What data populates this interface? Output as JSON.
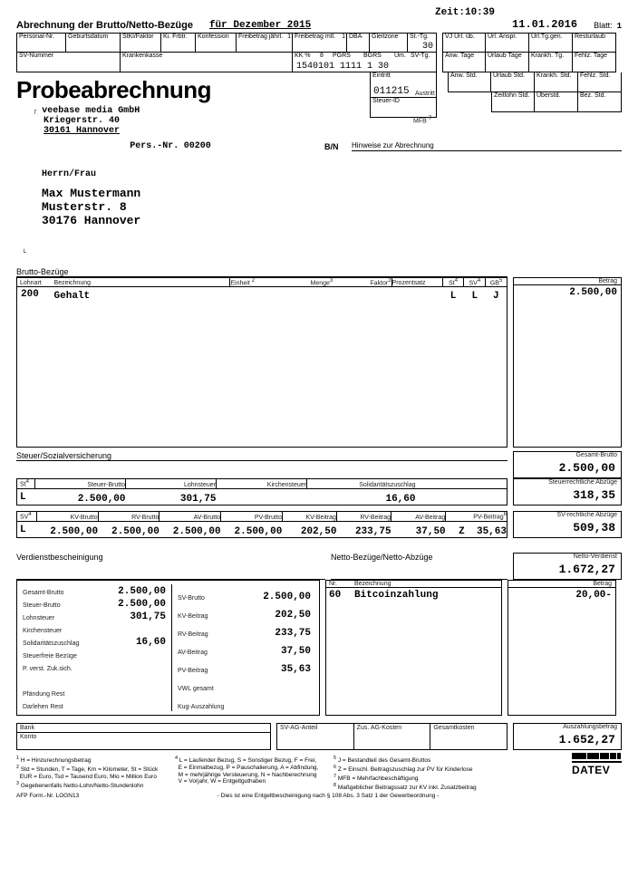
{
  "header": {
    "zeit_label": "Zeit:",
    "zeit": "10:39",
    "title_line": "Abrechnung der Brutto/Netto-Bezüge",
    "period": "für Dezember 2015",
    "date": "11.01.2016",
    "blatt_label": "Blatt:",
    "blatt": "1"
  },
  "row1": {
    "personal_nr": "Personal-Nr.",
    "geburtsdatum": "Geburtsdatum",
    "stkl_faktor": "StKl/Faktor",
    "ki_frbtr": "Ki. Frbtr.",
    "konfession": "Konfession",
    "freibetrag_j": "Freibetrag jährl.",
    "freibetrag_m": "Freibetrag mtl.",
    "dba": "DBA",
    "gleitzone": "Gleitzone",
    "st_tg": "St.-Tg.",
    "st_tg_val": "30",
    "vj_url": "VJ Url. üb.",
    "url_anspr": "Url. Anspr.",
    "url_tg_gen": "Url.Tg.gen.",
    "resturlaub": "Resturlaub"
  },
  "row2": {
    "sv_nummer": "SV-Nummer",
    "krankenkasse": "Krankenkasse",
    "kk": "KK %",
    "pgrs": "PGRS",
    "bgrs": "BGRS",
    "um": "Um.",
    "sv_tg": "SV-Tg.",
    "line_val": "1540101 1111 1 30",
    "anw_tage": "Anw. Tage",
    "urlaub_tage": "Urlaub Tage",
    "krankh_tg": "Krankh. Tg.",
    "fehlz_tage": "Fehlz. Tage"
  },
  "row3": {
    "eintritt": "Eintritt",
    "eintritt_val": "011215",
    "austritt": "Austritt",
    "anw_std": "Anw. Std.",
    "urlaub_std": "Urlaub Std.",
    "krankh_std": "Krankh. Std.",
    "fehlz_std": "Fehlz. Std."
  },
  "row4": {
    "steuer_id": "Steuer-ID",
    "mfb": "MFB",
    "zeitlohn": "Zeitlohn Std.",
    "ueberstd": "Überstd.",
    "bez_std": "Bez. Std."
  },
  "big_title": "Probeabrechnung",
  "company": {
    "name": "veebase media GmbH",
    "street": "Kriegerstr. 40",
    "city": "30161 Hannover"
  },
  "pers_nr_label": "Pers.-Nr.",
  "pers_nr": "00200",
  "bn": "B/N",
  "hinweise": "Hinweise zur Abrechnung",
  "addressee": {
    "salutation": "Herrn/Frau",
    "name": "Max Mustermann",
    "street": "Musterstr. 8",
    "city": "30176 Hannover"
  },
  "brutto": {
    "title": "Brutto-Bezüge",
    "cols": {
      "lohnart": "Lohnart",
      "bezeichnung": "Bezeichnung",
      "einheit": "Einheit",
      "menge": "Menge",
      "faktor": "Faktor",
      "prozentsatz": "Prozentsatz",
      "st": "St",
      "sv": "SV",
      "gb": "GB",
      "betrag": "Betrag"
    },
    "row": {
      "lohnart": "200",
      "bez": "Gehalt",
      "st": "L",
      "sv": "L",
      "gb": "J",
      "betrag": "2.500,00"
    }
  },
  "gesamt_brutto": {
    "label": "Gesamt-Brutto",
    "val": "2.500,00"
  },
  "steuer_section": {
    "title": "Steuer/Sozialversicherung",
    "st_row": {
      "st": "St",
      "steuer_brutto": "Steuer-Brutto",
      "lohnsteuer": "Lohnsteuer",
      "kirchensteuer": "Kirchensteuer",
      "soli": "Solidaritätszuschlag"
    },
    "st_vals": {
      "flag": "L",
      "steuer_brutto": "2.500,00",
      "lohnsteuer": "301,75",
      "soli": "16,60"
    },
    "steuer_abzuege": {
      "label": "Steuerrechtliche Abzüge",
      "val": "318,35"
    },
    "sv_row": {
      "sv": "SV",
      "kv_brutto": "KV-Brutto",
      "rv_brutto": "RV-Brutto",
      "av_brutto": "AV-Brutto",
      "pv_brutto": "PV-Brutto",
      "kv_beitrag": "KV-Beitrag",
      "rv_beitrag": "RV-Beitrag",
      "av_beitrag": "AV-Beitrag",
      "pv_beitrag": "PV-Beitrag"
    },
    "sv_vals": {
      "flag": "L",
      "kv_brutto": "2.500,00",
      "rv_brutto": "2.500,00",
      "av_brutto": "2.500,00",
      "pv_brutto": "2.500,00",
      "kv_beitrag": "202,50",
      "rv_beitrag": "233,75",
      "av_beitrag": "37,50",
      "z": "Z",
      "pv_beitrag": "35,63"
    },
    "sv_abzuege": {
      "label": "SV-rechtliche Abzüge",
      "val": "509,38"
    }
  },
  "netto_verdienst": {
    "label": "Netto-Verdienst",
    "val": "1.672,27"
  },
  "verdienst": {
    "title": "Verdienstbescheinigung",
    "left_col": [
      "Gesamt-Brutto",
      "Steuer-Brutto",
      "Lohnsteuer",
      "Kirchensteuer",
      "Solidaritätszuschlag",
      "Steuerfreie Bezüge",
      "P. verst. Zuk.sich.",
      "",
      "Pfändung Rest",
      "Darlehen Rest"
    ],
    "left_vals": [
      "2.500,00",
      "2.500,00",
      "301,75",
      "",
      "16,60",
      "",
      "",
      "",
      "",
      ""
    ],
    "right_col": [
      "SV-Brutto",
      "KV-Beitrag",
      "RV-Beitrag",
      "AV-Beitrag",
      "PV-Beitrag",
      "VWL gesamt",
      "Kug-Auszahlung"
    ],
    "right_vals": [
      "2.500,00",
      "202,50",
      "233,75",
      "37,50",
      "35,63",
      "",
      ""
    ]
  },
  "netto_bez": {
    "title": "Netto-Bezüge/Netto-Abzüge",
    "nr_label": "Nr.",
    "bez_label": "Bezeichnung",
    "betrag_label": "Betrag",
    "nr": "60",
    "bez": "Bitcoinzahlung",
    "betrag": "20,00-"
  },
  "bank_row": {
    "bank": "Bank",
    "konto": "Konto",
    "sv_ag": "SV-AG-Anteil",
    "zus_ag": "Zus. AG-Kosten",
    "gesamt": "Gesamtkosten",
    "ausz_label": "Auszahlungsbetrag",
    "ausz": "1.652,27"
  },
  "footnotes": {
    "c1": [
      "H = Hinzurechnungsbetrag",
      "Std = Stunden, T = Tage, Km = Kilometer, St = Stück",
      "EUR = Euro, Tsd = Tausend Euro, Mio = Million Euro",
      "Gegebenenfalls Netto-Lohn/Netto-Stundenlohn"
    ],
    "c2": [
      "L = Laufender Bezug, S = Sonstiger Bezug, F = Frei,",
      "E = Einmalbezug, P = Pauschalierung, A = Abfindung,",
      "M = mehrjährige Versteuerung, N = Nachberechnung",
      "V = Vorjahr, W = Entgeltguthaben"
    ],
    "c3": [
      "J = Bestandteil des Gesamt-Bruttos",
      "Z = Einschl. Beitragszuschlag zur PV für Kinderlose",
      "MFB = Mehrfachbeschäftigung",
      "Maßgeblicher Beitragssatz zur KV inkl. Zusatzbeitrag"
    ],
    "bottom": "- Dies ist eine Entgeltbescheinigung nach § 108 Abs. 3 Satz 1 der Gewerbeordnung -",
    "form": "AFP Form.-Nr. LOGN13"
  },
  "datev": "DATEV"
}
